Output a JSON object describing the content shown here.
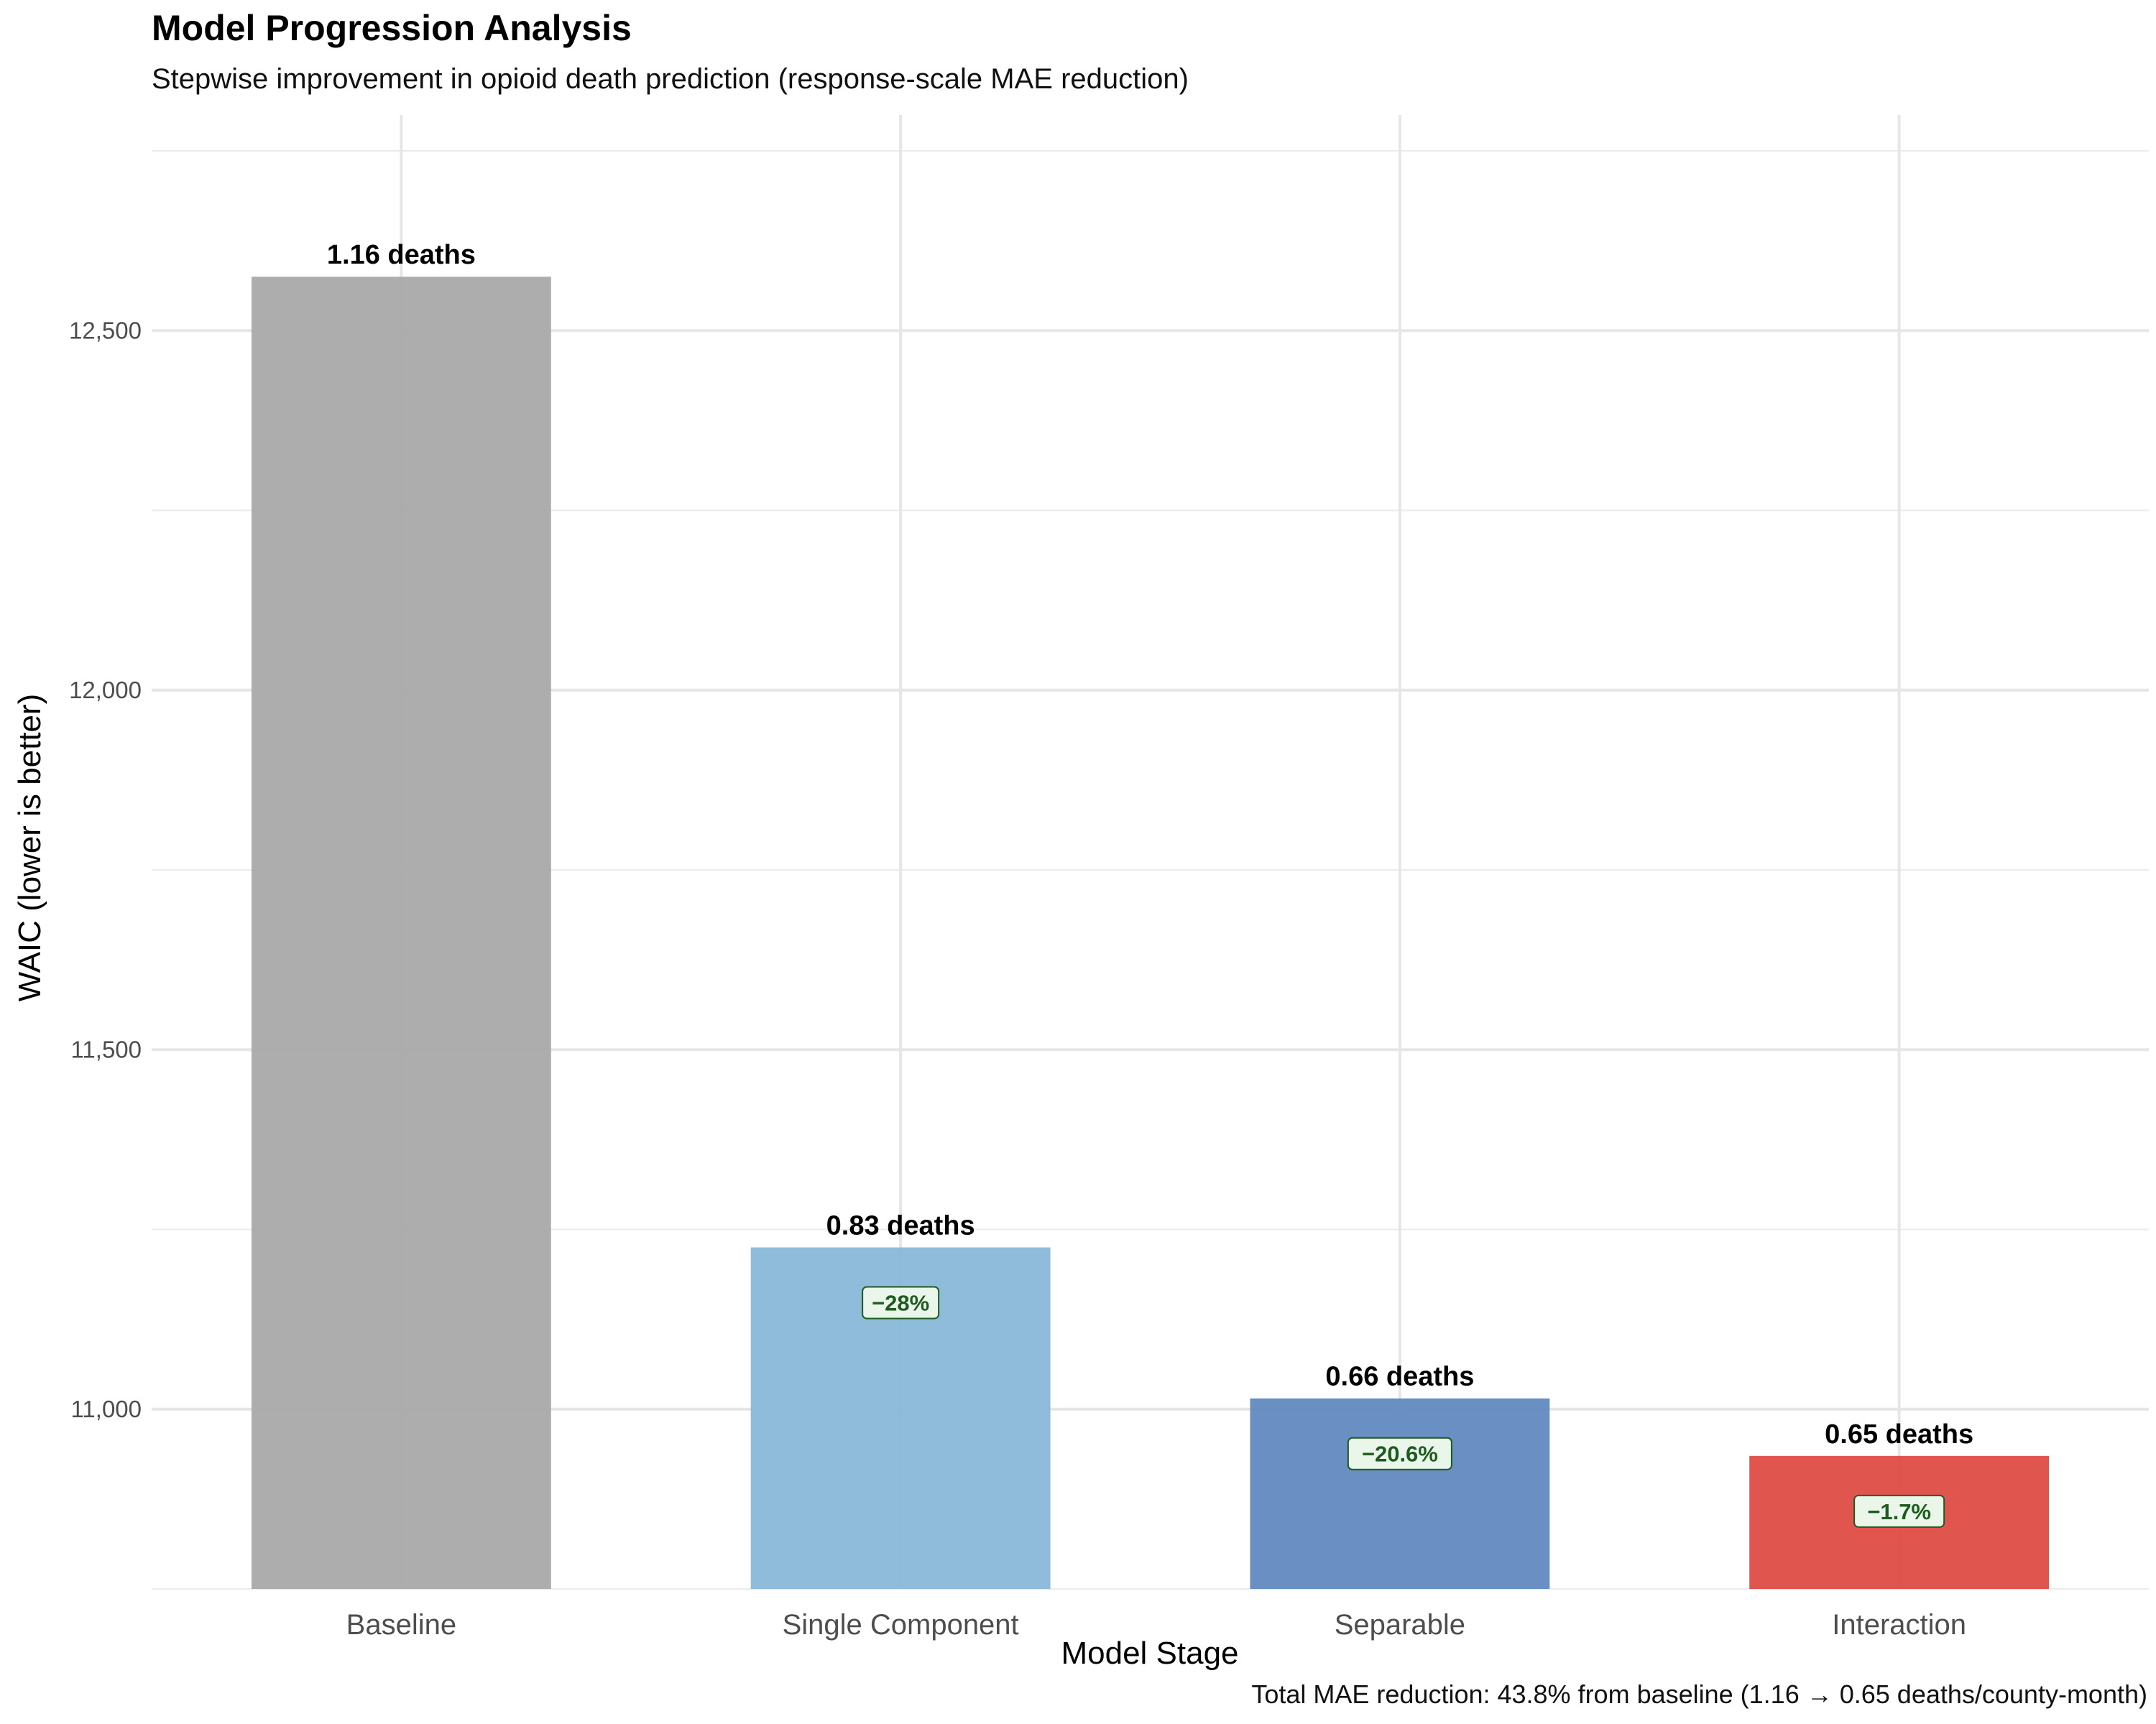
{
  "chart_data": {
    "type": "bar",
    "title": "Model Progression Analysis",
    "subtitle": "Stepwise improvement in opioid death prediction (response-scale MAE reduction)",
    "caption": "Total MAE reduction: 43.8% from baseline (1.16 → 0.65 deaths/county-month)",
    "xlabel": "Model Stage",
    "ylabel": "WAIC (lower is better)",
    "categories": [
      "Baseline",
      "Single Component",
      "Separable",
      "Interaction"
    ],
    "values": [
      12575,
      11225,
      11015,
      10935
    ],
    "value_labels": [
      "1.16 deaths",
      "0.83 deaths",
      "0.66 deaths",
      "0.65 deaths"
    ],
    "change_labels": [
      "",
      "−28%",
      "−20.6%",
      "−1.7%"
    ],
    "colors": [
      "#a9a9a9",
      "#89b8d8",
      "#6289c0",
      "#de4c45"
    ],
    "yticks": [
      11000,
      11500,
      12000,
      12500
    ],
    "ytick_labels": [
      "11,000",
      "11,500",
      "12,000",
      "12,500"
    ],
    "ylim": [
      10750,
      12800
    ],
    "grid": true,
    "legend": "none"
  }
}
